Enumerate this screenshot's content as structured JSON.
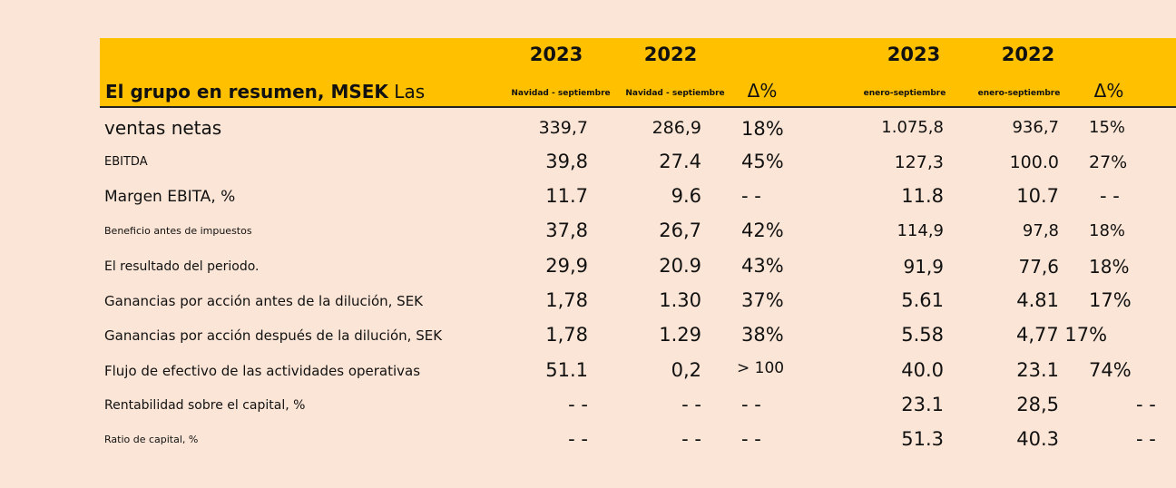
{
  "header": {
    "title_bold": "El grupo en resumen, MSEK",
    "title_rest": " Las",
    "years": [
      "2023",
      "2022",
      "2023",
      "2022"
    ],
    "periods": [
      "Navidad - septiembre",
      "Navidad - septiembre",
      "enero-septiembre",
      "enero-septiembre"
    ],
    "delta_labels": [
      "Δ%",
      "Δ%"
    ]
  },
  "rows": [
    {
      "label": "ventas netas",
      "q2023": "339,7",
      "q2022": "286,9",
      "qdelta": "18%",
      "y2023": "1.075,8",
      "y2022": "936,7",
      "ydelta": "15%"
    },
    {
      "label": "EBITDA",
      "q2023": "39,8",
      "q2022": "27.4",
      "qdelta": "45%",
      "y2023": "127,3",
      "y2022": "100.0",
      "ydelta": "27%"
    },
    {
      "label": "Margen EBITA, %",
      "q2023": "11.7",
      "q2022": "9.6",
      "qdelta": "- -",
      "y2023": "11.8",
      "y2022": "10.7",
      "ydelta": "- -"
    },
    {
      "label": "Beneficio antes de impuestos",
      "q2023": "37,8",
      "q2022": "26,7",
      "qdelta": "42%",
      "y2023": "114,9",
      "y2022": "97,8",
      "ydelta": "18%"
    },
    {
      "label": "El resultado del periodo.",
      "q2023": "29,9",
      "q2022": "20.9",
      "qdelta": "43%",
      "y2023": "91,9",
      "y2022": "77,6",
      "ydelta": "18%"
    },
    {
      "label": "Ganancias por acción antes de la dilución, SEK",
      "q2023": "1,78",
      "q2022": "1.30",
      "qdelta": "37%",
      "y2023": "5.61",
      "y2022": "4.81",
      "ydelta": "17%"
    },
    {
      "label": "Ganancias por acción después de la dilución, SEK",
      "q2023": "1,78",
      "q2022": "1.29",
      "qdelta": "38%",
      "y2023": "5.58",
      "y2022": "4,77 17%",
      "ydelta": ""
    },
    {
      "label": "Flujo de efectivo de las actividades operativas",
      "q2023": "51.1",
      "q2022": "0,2",
      "qdelta": "> 100",
      "y2023": "40.0",
      "y2022": "23.1",
      "ydelta": "74%"
    },
    {
      "label": "Rentabilidad sobre el capital, %",
      "q2023": "- -",
      "q2022": "- -",
      "qdelta": "- -",
      "y2023": "23.1",
      "y2022": "28,5",
      "ydelta": "- -"
    },
    {
      "label": "Ratio de capital, %",
      "q2023": "- -",
      "q2022": "- -",
      "qdelta": "- -",
      "y2023": "51.3",
      "y2022": "40.3",
      "ydelta": "- -"
    }
  ]
}
